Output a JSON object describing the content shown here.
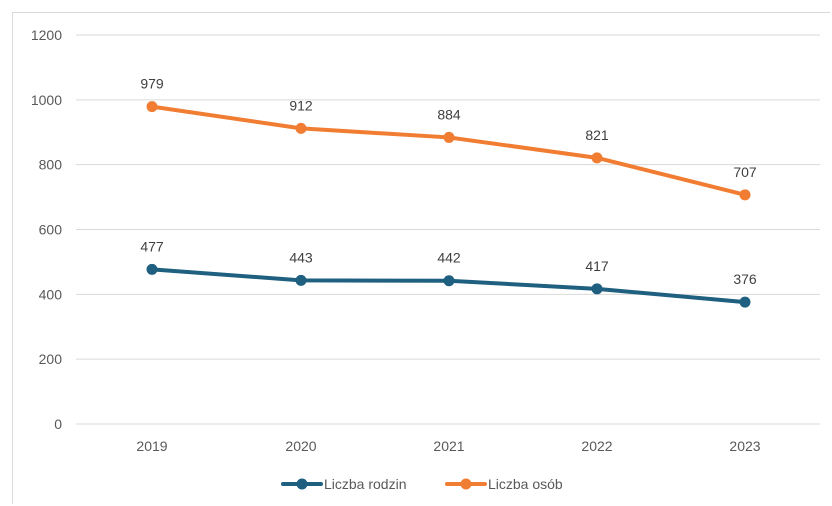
{
  "chart_data": {
    "type": "line",
    "title": "",
    "xlabel": "",
    "ylabel": "",
    "categories": [
      "2019",
      "2020",
      "2021",
      "2022",
      "2023"
    ],
    "ylim": [
      0,
      1200
    ],
    "yticks": [
      0,
      200,
      400,
      600,
      800,
      1000,
      1200
    ],
    "grid": true,
    "legend_position": "bottom",
    "series": [
      {
        "name": "Liczba rodzin",
        "color": "#1f5f7f",
        "values": [
          477,
          443,
          442,
          417,
          376
        ]
      },
      {
        "name": "Liczba osób",
        "color": "#f07d32",
        "values": [
          979,
          912,
          884,
          821,
          707
        ]
      }
    ]
  }
}
